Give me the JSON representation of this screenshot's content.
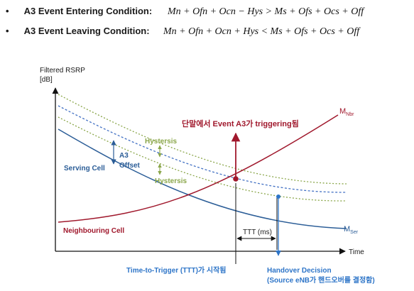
{
  "conditions": [
    {
      "bullet": "•",
      "label": "A3 Event Entering Condition:",
      "formula": "Mn + Ofn + Ocn − Hys > Ms + Ofs + Ocs + Off"
    },
    {
      "bullet": "•",
      "label": "A3 Event Leaving Condition:",
      "formula": "Mn + Ofn + Ocn + Hys < Ms + Ofs + Ocs + Off"
    }
  ],
  "diagram": {
    "y_axis_label_line1": "Filtered RSRP",
    "y_axis_label_line2": "[dB]",
    "x_axis_label": "Time",
    "serving_cell_label": "Serving Cell",
    "neighbouring_cell_label": "Neighbouring Cell",
    "a3_offset_label_line1": "A3",
    "a3_offset_label_line2": "Offset",
    "hysteresis_label_top": "Hystersis",
    "hysteresis_label_bottom": "Hystersis",
    "m_nbr": {
      "main": "M",
      "sub": "Nbr"
    },
    "m_ser": {
      "main": "M",
      "sub": "Ser"
    },
    "trigger_label": "단말에서 Event A3가 triggering됨",
    "ttt_interval_label": "TTT (ms)",
    "ttt_start_label": "Time-to-Trigger (TTT)가 시작됨",
    "handover_label_line1": "Handover Decision",
    "handover_label_line2": "(Source eNB가 핸드오버를 결정함)",
    "colors": {
      "serving": "#2b5d97",
      "neighbour": "#a0182c",
      "offset_line": "#4472c4",
      "hysteresis": "#8aa64a",
      "accent_blue": "#2e75c8",
      "dark_text": "#1a1a1a"
    }
  }
}
